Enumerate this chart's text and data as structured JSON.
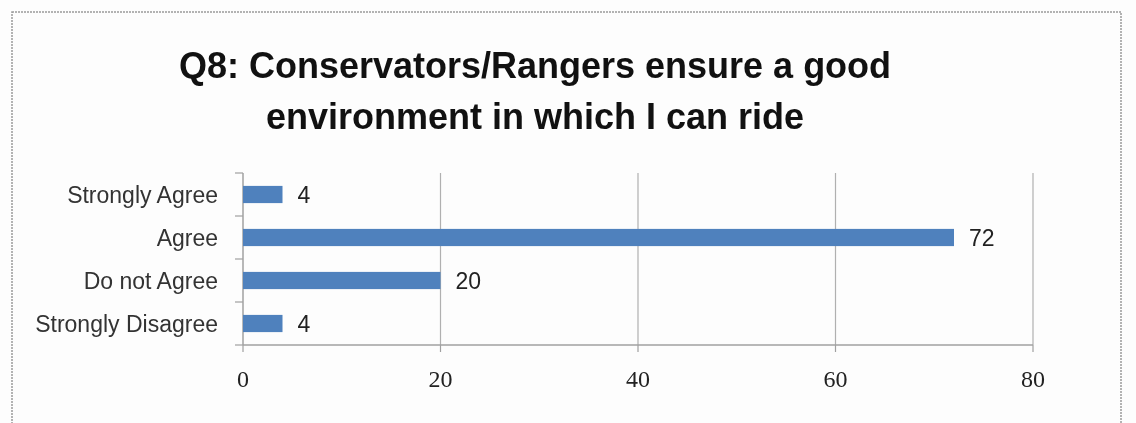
{
  "chart_data": {
    "type": "bar",
    "orientation": "horizontal",
    "title": "Q8: Conservators/Rangers ensure a good\nenvironment in which I can ride",
    "categories": [
      "Strongly Agree",
      "Agree",
      "Do not Agree",
      "Strongly Disagree"
    ],
    "values": [
      4,
      72,
      20,
      4
    ],
    "color": "#4f81bd",
    "xlim": [
      0,
      80
    ],
    "xticks": [
      0,
      20,
      40,
      60,
      80
    ],
    "grid": "x",
    "data_labels": true
  }
}
